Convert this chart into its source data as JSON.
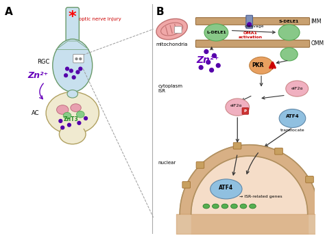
{
  "bg_color": "#ffffff",
  "panel_A_label": "A",
  "panel_B_label": "B",
  "optic_nerve_injury": "optic nerve injury",
  "RGC_label": "RGC",
  "AC_label": "AC",
  "ZnT3_label": "ZnT3",
  "Zn_label_A": "Zn²⁺",
  "Zn_label_B": "Zn²⁺",
  "mitochondria_label": "mitochondria",
  "IMM_label": "IMM",
  "OMM_label": "OMM",
  "OMA1_label": "OMA1\nactivation",
  "cleavage_label": "cleavage",
  "LDELE1_label": "L-DELE1",
  "SDELE1_label": "S-DELE1",
  "PKR_label": "PKR",
  "eIF2a_label1": "eIF2α",
  "eIF2a_label2": "eIF2α",
  "P_label": "P",
  "ATF4_label1": "ATF4",
  "ATF4_label2": "ATF4",
  "translocate_label": "translocate",
  "cytoplasm_ISR_label": "cytoplasm\nISR",
  "nuclear_label": "nuclear",
  "ISR_genes_label": "→ ISR-related genes",
  "cell_blue": "#c8e0ee",
  "cell_outline": "#6a9a6a",
  "cell_yellow": "#f0ead0",
  "yellow_outline": "#b0a060",
  "membrane_color": "#c8a070",
  "PKR_color": "#e8a060",
  "eIF2a_color": "#f0b0c0",
  "ATF4_color": "#90c0e0",
  "LDELE1_color": "#88c888",
  "SDELE1_color": "#88c888",
  "mito_color": "#f0a8a8",
  "mito_stripe": "#d07070",
  "nuclear_fill": "#f5ddc8",
  "nuclear_ring": "#d4a878",
  "dot_color": "#5500aa",
  "red_text_color": "#cc0000",
  "purple_text_color": "#6600bb",
  "green_text_color": "#228822",
  "OMA1_color": "#cc0000",
  "chan_color": "#8090b8"
}
